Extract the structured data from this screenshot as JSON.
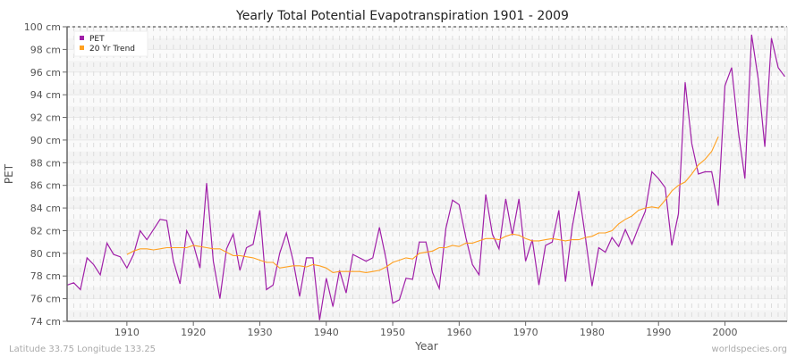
{
  "chart_data": {
    "type": "line",
    "title": "Yearly Total Potential Evapotranspiration 1901 - 2009",
    "xlabel": "Year",
    "ylabel": "PET",
    "ylim": [
      74,
      100
    ],
    "xlim": [
      1901,
      2009
    ],
    "y_ticks": [
      "74 cm",
      "76 cm",
      "78 cm",
      "80 cm",
      "82 cm",
      "84 cm",
      "86 cm",
      "88 cm",
      "90 cm",
      "92 cm",
      "94 cm",
      "96 cm",
      "98 cm",
      "100 cm"
    ],
    "y_tick_values": [
      74,
      76,
      78,
      80,
      82,
      84,
      86,
      88,
      90,
      92,
      94,
      96,
      98,
      100
    ],
    "x_ticks": [
      "1910",
      "1920",
      "1930",
      "1940",
      "1950",
      "1960",
      "1970",
      "1980",
      "1990",
      "2000"
    ],
    "x_tick_values": [
      1910,
      1920,
      1930,
      1940,
      1950,
      1960,
      1970,
      1980,
      1990,
      2000
    ],
    "grid": true,
    "legend_position": "top-left",
    "series": [
      {
        "name": "PET",
        "color": "#a020a8",
        "start_year": 1901,
        "values": [
          77.2,
          77.4,
          76.8,
          79.6,
          79.0,
          78.1,
          80.9,
          79.9,
          79.7,
          78.7,
          79.9,
          82.0,
          81.2,
          82.1,
          83.0,
          82.9,
          79.3,
          77.3,
          82.0,
          80.8,
          78.7,
          86.2,
          79.3,
          76.0,
          80.4,
          81.7,
          78.5,
          80.5,
          80.8,
          83.8,
          76.8,
          77.2,
          80.0,
          81.8,
          79.4,
          76.2,
          79.6,
          79.6,
          74.1,
          77.8,
          75.3,
          78.5,
          76.5,
          79.9,
          79.6,
          79.3,
          79.6,
          82.3,
          79.5,
          75.6,
          75.9,
          77.8,
          77.7,
          81.0,
          81.0,
          78.3,
          76.9,
          82.2,
          84.7,
          84.3,
          81.4,
          79.0,
          78.1,
          85.2,
          81.7,
          80.4,
          84.8,
          81.6,
          84.8,
          79.3,
          81.2,
          77.2,
          80.7,
          81.0,
          83.8,
          77.5,
          82.3,
          85.5,
          81.4,
          77.1,
          80.5,
          80.1,
          81.4,
          80.6,
          82.1,
          80.8,
          82.3,
          83.7,
          87.2,
          86.6,
          85.8,
          80.7,
          83.5,
          95.1,
          89.7,
          87.0,
          87.2,
          87.2,
          84.2,
          94.8,
          96.4,
          90.8,
          86.6,
          99.3,
          95.4,
          89.4,
          99.0,
          96.4,
          95.6
        ]
      },
      {
        "name": "20 Yr Trend",
        "color": "#ffa020",
        "start_year": 1910,
        "values": [
          79.9,
          80.2,
          80.4,
          80.4,
          80.3,
          80.4,
          80.5,
          80.5,
          80.5,
          80.5,
          80.7,
          80.6,
          80.5,
          80.4,
          80.4,
          80.1,
          79.8,
          79.8,
          79.7,
          79.6,
          79.4,
          79.2,
          79.2,
          78.7,
          78.8,
          78.9,
          78.9,
          78.8,
          79.0,
          78.9,
          78.7,
          78.3,
          78.4,
          78.4,
          78.4,
          78.4,
          78.3,
          78.4,
          78.5,
          78.8,
          79.2,
          79.4,
          79.6,
          79.5,
          80.0,
          80.1,
          80.2,
          80.5,
          80.5,
          80.7,
          80.6,
          80.9,
          80.9,
          81.1,
          81.3,
          81.3,
          81.2,
          81.5,
          81.7,
          81.6,
          81.3,
          81.1,
          81.1,
          81.2,
          81.3,
          81.2,
          81.1,
          81.2,
          81.2,
          81.4,
          81.5,
          81.8,
          81.8,
          82.0,
          82.6,
          83.0,
          83.3,
          83.8,
          84.0,
          84.1,
          84.0,
          84.7,
          85.5,
          86.0,
          86.3,
          87.0,
          87.8,
          88.3,
          89.0,
          90.3
        ]
      }
    ]
  },
  "footer": {
    "location": "Latitude 33.75 Longitude 133.25",
    "source": "worldspecies.org"
  }
}
